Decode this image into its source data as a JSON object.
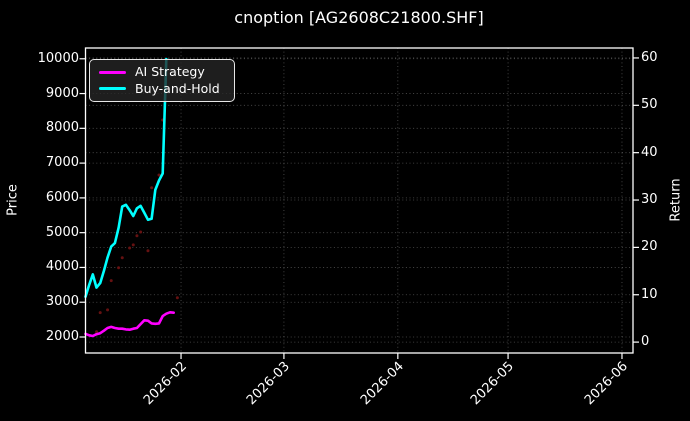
{
  "title": "cnoption [AG2608C21800.SHF]",
  "chart_data": {
    "type": "line",
    "title": "cnoption [AG2608C21800.SHF]",
    "background_color": "#000000",
    "text_color": "#ffffff",
    "grid": true,
    "x_axis": {
      "range": [
        "2026-01-06",
        "2026-06-04"
      ],
      "ticks": [
        {
          "date": "2026-02-01",
          "label": "2026-02"
        },
        {
          "date": "2026-03-01",
          "label": "2026-03"
        },
        {
          "date": "2026-04-01",
          "label": "2026-04"
        },
        {
          "date": "2026-05-01",
          "label": "2026-05"
        },
        {
          "date": "2026-06-01",
          "label": "2026-06"
        }
      ]
    },
    "left_axis": {
      "label": "Price",
      "range": [
        1540,
        10310
      ],
      "ticks": [
        2000,
        3000,
        4000,
        5000,
        6000,
        7000,
        8000,
        9000,
        10000
      ]
    },
    "right_axis": {
      "label": "Return",
      "range": [
        -2.3,
        62.1
      ],
      "ticks": [
        0,
        10,
        20,
        30,
        40,
        50,
        60
      ]
    },
    "legend": {
      "position": "upper-left",
      "entries": [
        {
          "label": "AI Strategy",
          "color": "#ff00ff"
        },
        {
          "label": "Buy-and-Hold",
          "color": "#00ffff"
        }
      ]
    },
    "series": [
      {
        "name": "AI Strategy",
        "type": "line",
        "axis": "left",
        "color": "#ff00ff",
        "dates": [
          "2026-01-06",
          "2026-01-07",
          "2026-01-08",
          "2026-01-09",
          "2026-01-10",
          "2026-01-11",
          "2026-01-12",
          "2026-01-13",
          "2026-01-14",
          "2026-01-15",
          "2026-01-16",
          "2026-01-17",
          "2026-01-18",
          "2026-01-19",
          "2026-01-20",
          "2026-01-21",
          "2026-01-22",
          "2026-01-23",
          "2026-01-24",
          "2026-01-25",
          "2026-01-26",
          "2026-01-27",
          "2026-01-28",
          "2026-01-29",
          "2026-01-30"
        ],
        "values": [
          2090,
          2050,
          2030,
          2080,
          2110,
          2180,
          2260,
          2290,
          2260,
          2240,
          2240,
          2220,
          2210,
          2240,
          2260,
          2370,
          2480,
          2470,
          2390,
          2380,
          2390,
          2600,
          2670,
          2710,
          2700
        ]
      },
      {
        "name": "Buy-and-Hold",
        "type": "line",
        "axis": "left",
        "color": "#00ffff",
        "dates": [
          "2026-01-06",
          "2026-01-07",
          "2026-01-08",
          "2026-01-09",
          "2026-01-10",
          "2026-01-11",
          "2026-01-12",
          "2026-01-13",
          "2026-01-14",
          "2026-01-15",
          "2026-01-16",
          "2026-01-17",
          "2026-01-18",
          "2026-01-19",
          "2026-01-20",
          "2026-01-21",
          "2026-01-22",
          "2026-01-23",
          "2026-01-24",
          "2026-01-25",
          "2026-01-26",
          "2026-01-27",
          "2026-01-28"
        ],
        "values": [
          3160,
          3500,
          3800,
          3420,
          3550,
          3900,
          4280,
          4600,
          4700,
          5140,
          5750,
          5800,
          5650,
          5480,
          5700,
          5770,
          5570,
          5370,
          5400,
          6230,
          6500,
          6700,
          9990
        ]
      },
      {
        "name": "unlabeled-red-dots",
        "type": "scatter",
        "axis": "left",
        "color": "#6b1212",
        "dates": [
          "2026-01-09",
          "2026-01-10",
          "2026-01-12",
          "2026-01-13",
          "2026-01-15",
          "2026-01-16",
          "2026-01-18",
          "2026-01-19",
          "2026-01-20",
          "2026-01-21",
          "2026-01-23",
          "2026-01-24",
          "2026-01-26",
          "2026-01-27",
          "2026-01-28",
          "2026-01-31"
        ],
        "values": [
          2150,
          2700,
          2780,
          3620,
          3990,
          4280,
          4560,
          4650,
          4910,
          5020,
          4480,
          6290,
          6660,
          8240,
          9160,
          3130
        ]
      }
    ]
  }
}
